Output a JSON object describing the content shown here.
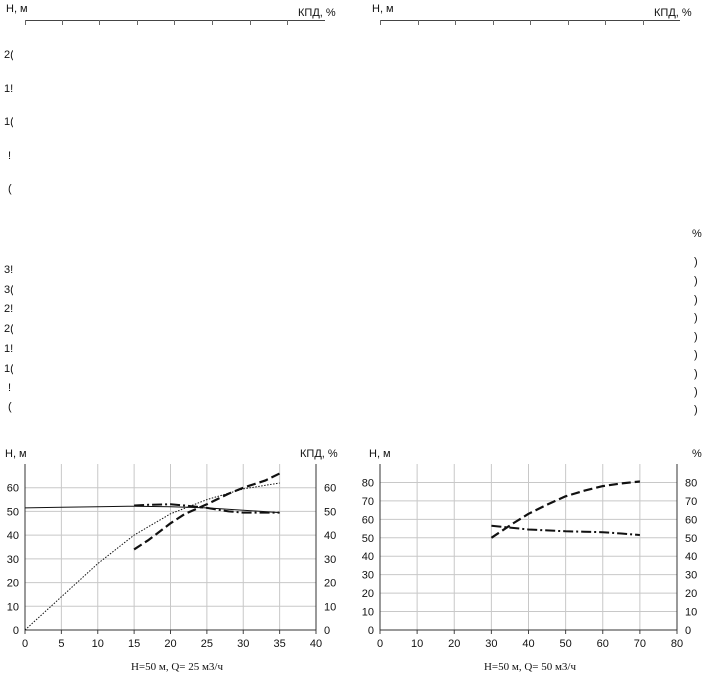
{
  "upper_left_fragment": {
    "ylabel_left": "Н, м",
    "ylabel_right": "КПД, %",
    "clipped_ticks_a": [
      "2(",
      "1!",
      "1(",
      "!",
      "("
    ],
    "clipped_ticks_b": [
      "3!",
      "3(",
      "2!",
      "2(",
      "1!",
      "1(",
      "!",
      "("
    ]
  },
  "upper_right_fragment": {
    "ylabel_left": "Н, м",
    "ylabel_right": "КПД, %",
    "clipped_right_ticks": [
      "%",
      ")",
      ")",
      ")",
      ")",
      ")",
      ")",
      ")",
      ")",
      ")"
    ]
  },
  "chart_data": [
    {
      "type": "line",
      "caption": "H=50 м, Q= 25 м3/ч",
      "ylabel_left": "Н, м",
      "ylabel_right": "КПД, %",
      "xlim": [
        0,
        40
      ],
      "ylim_left": [
        0,
        70
      ],
      "ylim_right": [
        0,
        70
      ],
      "x_ticks": [
        "0",
        "5",
        "10",
        "15",
        "20",
        "25",
        "30",
        "35",
        "40"
      ],
      "y_ticks_left": [
        "0",
        "10",
        "20",
        "30",
        "40",
        "50",
        "60"
      ],
      "y_ticks_right": [
        "0",
        "10",
        "20",
        "30",
        "40",
        "50",
        "60"
      ],
      "grid": true,
      "series": [
        {
          "style": "solid",
          "axis": "left",
          "x": [
            0,
            5,
            10,
            15,
            20,
            25,
            30,
            35
          ],
          "y": [
            51.5,
            51.8,
            52.0,
            52.2,
            52.0,
            51.5,
            50.5,
            49.5
          ]
        },
        {
          "style": "dotted",
          "axis": "right",
          "x": [
            0,
            5,
            10,
            15,
            20,
            25,
            30,
            35
          ],
          "y": [
            0,
            14,
            28,
            40,
            49,
            55,
            59.5,
            62
          ]
        },
        {
          "style": "dash-dot",
          "axis": "left",
          "x": [
            15,
            17,
            20,
            22,
            25,
            28,
            30,
            33,
            35
          ],
          "y": [
            52.5,
            52.8,
            53.0,
            52.5,
            51.5,
            50.0,
            49.5,
            49.5,
            49.5
          ]
        },
        {
          "style": "dash",
          "axis": "right",
          "x": [
            15,
            17,
            20,
            22,
            25,
            28,
            30,
            33,
            35
          ],
          "y": [
            34,
            38,
            45,
            49,
            53,
            57.5,
            60,
            63,
            66
          ]
        }
      ]
    },
    {
      "type": "line",
      "caption": "H=50 м, Q= 50 м3/ч",
      "ylabel_left": "Н, м",
      "ylabel_right": "%",
      "xlim": [
        0,
        80
      ],
      "ylim_left": [
        0,
        90
      ],
      "ylim_right": [
        0,
        90
      ],
      "x_ticks": [
        "0",
        "10",
        "20",
        "30",
        "40",
        "50",
        "60",
        "70",
        "80"
      ],
      "y_ticks_left": [
        "0",
        "10",
        "20",
        "30",
        "40",
        "50",
        "60",
        "70",
        "80"
      ],
      "y_ticks_right": [
        "0",
        "10",
        "20",
        "30",
        "40",
        "50",
        "60",
        "70",
        "80"
      ],
      "grid": true,
      "series": [
        {
          "style": "dash-dot",
          "axis": "left",
          "x": [
            30,
            35,
            40,
            45,
            50,
            55,
            60,
            65,
            70
          ],
          "y": [
            56.5,
            55.5,
            54.5,
            54,
            53.5,
            53.3,
            53,
            52.3,
            51.5
          ]
        },
        {
          "style": "dash",
          "axis": "right",
          "x": [
            30,
            33,
            36,
            40,
            45,
            50,
            55,
            60,
            65,
            70
          ],
          "y": [
            50,
            54,
            58,
            63,
            68,
            72.5,
            75.5,
            78,
            79.5,
            80.5
          ]
        }
      ]
    }
  ]
}
